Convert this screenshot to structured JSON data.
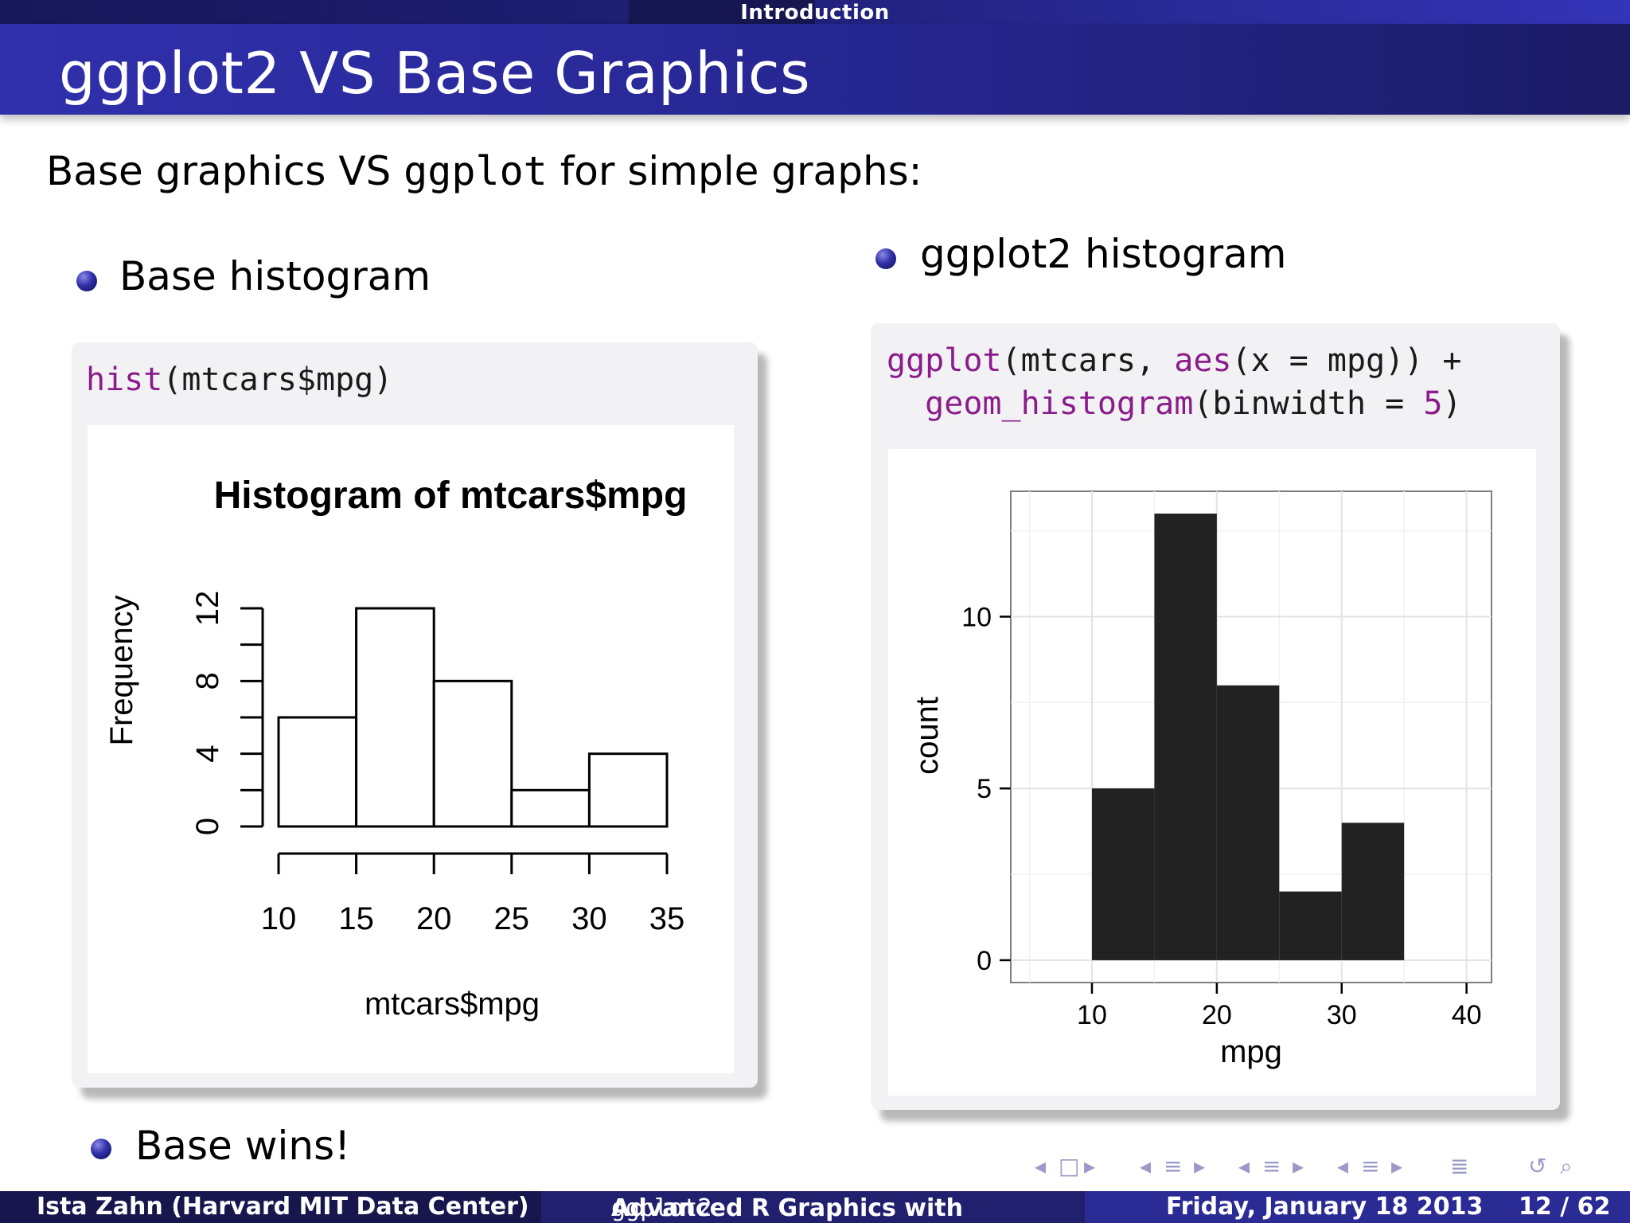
{
  "header": {
    "section": "Introduction",
    "title": "ggplot2 VS Base Graphics"
  },
  "intro": {
    "text_before": "Base graphics VS ",
    "code": "ggplot",
    "text_after": " for simple graphs:"
  },
  "left": {
    "bullet": "Base histogram",
    "code_fn": "hist",
    "code_rest": "(mtcars$mpg)"
  },
  "right": {
    "bullet": "ggplot2 histogram",
    "code_line1_fn": "ggplot",
    "code_line1_a": "(mtcars, ",
    "code_line1_fn2": "aes",
    "code_line1_b": "(x = mpg)) +",
    "code_line2_fn": "geom_histogram",
    "code_line2_a": "(binwidth = ",
    "code_line2_num": "5",
    "code_line2_b": ")"
  },
  "conclusion": "Base wins!",
  "footer": {
    "author": "Ista Zahn  (Harvard MIT Data Center)",
    "talk": "Advanced R Graphics with ",
    "talk_code": "ggplot2",
    "date": "Friday, January 18 2013",
    "page": "12 / 62"
  },
  "nav_icons": [
    "nav-left-icon",
    "frame-icon",
    "nav-right-icon",
    "nav-left-icon",
    "subsection-icon",
    "nav-right-icon",
    "nav-left-icon",
    "section-icon",
    "nav-right-icon",
    "nav-left-icon",
    "section-icon",
    "nav-right-icon",
    "toc-icon",
    "undo-icon",
    "zoom-icon"
  ],
  "chart_data": [
    {
      "type": "bar",
      "title": "Histogram of mtcars$mpg",
      "xlabel": "mtcars$mpg",
      "ylabel": "Frequency",
      "bins": [
        [
          10,
          15
        ],
        [
          15,
          20
        ],
        [
          20,
          25
        ],
        [
          25,
          30
        ],
        [
          30,
          35
        ]
      ],
      "values": [
        6,
        12,
        8,
        2,
        4
      ],
      "xticks": [
        10,
        15,
        20,
        25,
        30,
        35
      ],
      "yticks": [
        0,
        4,
        8,
        12
      ],
      "xlim": [
        10,
        35
      ],
      "ylim": [
        0,
        12
      ],
      "grid": false
    },
    {
      "type": "bar",
      "title": "",
      "xlabel": "mpg",
      "ylabel": "count",
      "bins": [
        [
          10,
          15
        ],
        [
          15,
          20
        ],
        [
          20,
          25
        ],
        [
          25,
          30
        ],
        [
          30,
          35
        ]
      ],
      "values": [
        5,
        13,
        8,
        2,
        4
      ],
      "xticks": [
        10,
        20,
        30,
        40
      ],
      "yticks": [
        0,
        5,
        10
      ],
      "xlim": [
        3.5,
        42
      ],
      "ylim": [
        -0.65,
        13.65
      ],
      "grid": true,
      "bar_color": "#222222"
    }
  ]
}
